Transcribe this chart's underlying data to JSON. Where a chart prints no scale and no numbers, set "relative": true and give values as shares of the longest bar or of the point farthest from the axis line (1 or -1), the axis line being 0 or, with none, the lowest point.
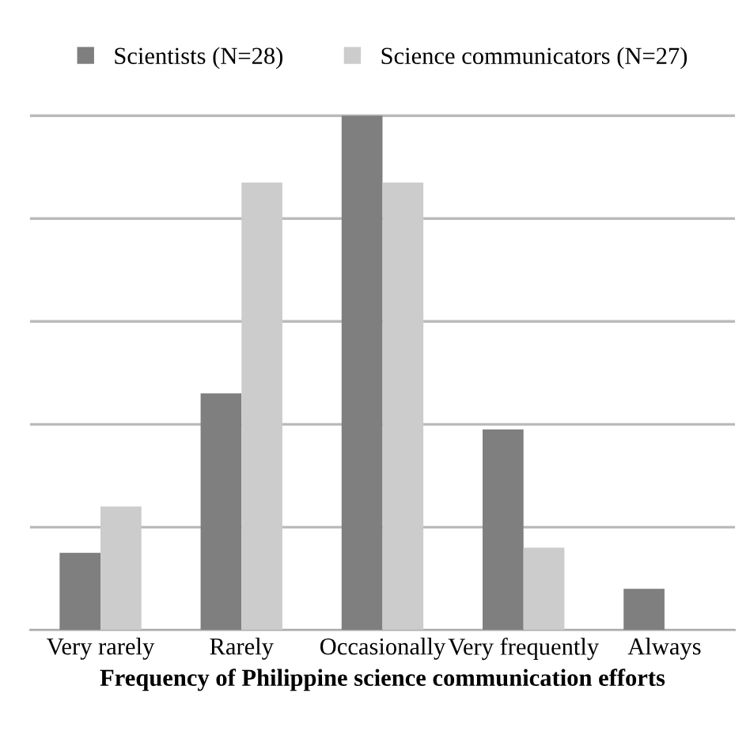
{
  "chart_data": {
    "type": "bar",
    "relative": true,
    "xlabel": "Frequency of Philippine science communication efforts",
    "categories": [
      "Very rarely",
      "Rarely",
      "Occasionally",
      "Very frequently",
      "Always"
    ],
    "series": [
      {
        "name": "Scientists (N=28)",
        "color": "#7f7f7f",
        "values": [
          0.15,
          0.46,
          1,
          0.39,
          0.08
        ]
      },
      {
        "name": "Science communicators (N=27)",
        "color": "#cccccc",
        "values": [
          0.24,
          0.87,
          0.87,
          0.16,
          0
        ]
      }
    ],
    "grid": "y",
    "legend": "top"
  }
}
